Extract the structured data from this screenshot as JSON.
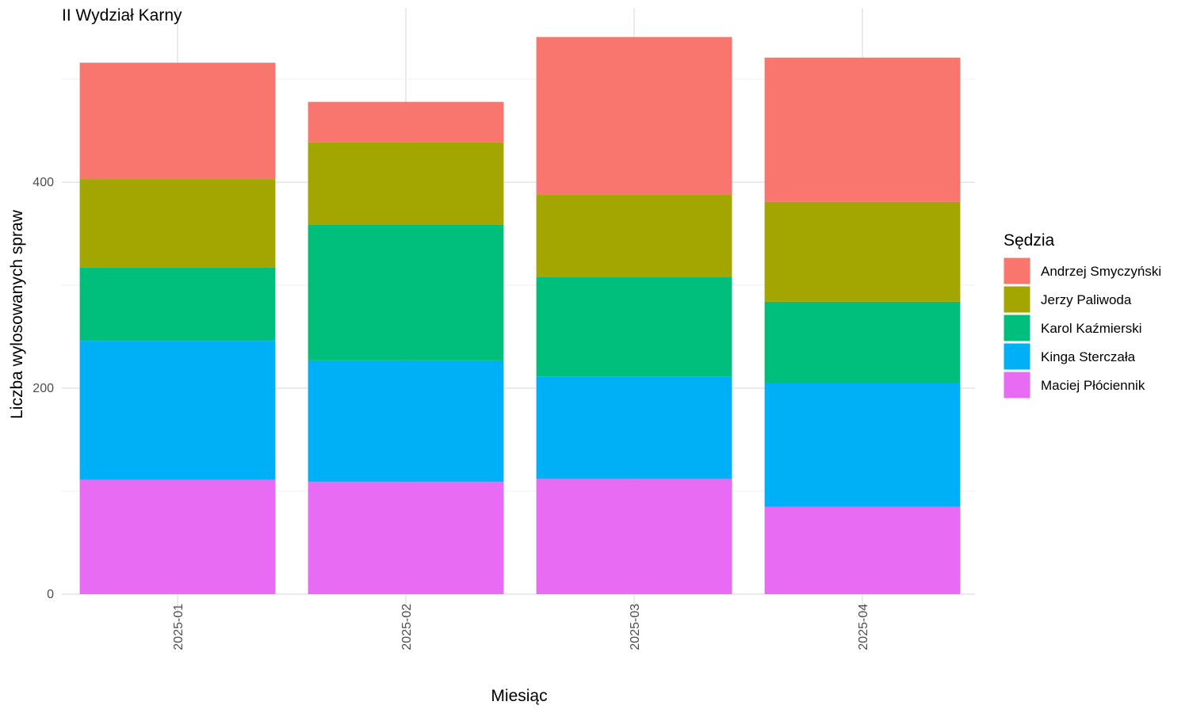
{
  "chart_data": {
    "type": "bar",
    "stacked": true,
    "title": "II Wydział Karny",
    "xlabel": "Miesiąc",
    "ylabel": "Liczba wylosowanych spraw",
    "categories": [
      "2025-01",
      "2025-02",
      "2025-03",
      "2025-04"
    ],
    "ylim": [
      -5,
      570
    ],
    "yticks": [
      0,
      200,
      400
    ],
    "grid": true,
    "legend_title": "Sędzia",
    "legend_position": "right",
    "series": [
      {
        "name": "Maciej Płóciennik",
        "color": "#E76BF3",
        "values": [
          111,
          109,
          112,
          85
        ]
      },
      {
        "name": "Kinga Sterczała",
        "color": "#00B0F6",
        "values": [
          135,
          118,
          99,
          120
        ]
      },
      {
        "name": "Karol Kaźmierski",
        "color": "#00BF7D",
        "values": [
          71,
          132,
          97,
          79
        ]
      },
      {
        "name": "Jerzy Paliwoda",
        "color": "#A3A500",
        "values": [
          86,
          80,
          80,
          97
        ]
      },
      {
        "name": "Andrzej Smyczyński",
        "color": "#F8766D",
        "values": [
          113,
          39,
          153,
          140
        ]
      }
    ],
    "legend_order": [
      "Andrzej Smyczyński",
      "Jerzy Paliwoda",
      "Karol Kaźmierski",
      "Kinga Sterczała",
      "Maciej Płóciennik"
    ]
  }
}
